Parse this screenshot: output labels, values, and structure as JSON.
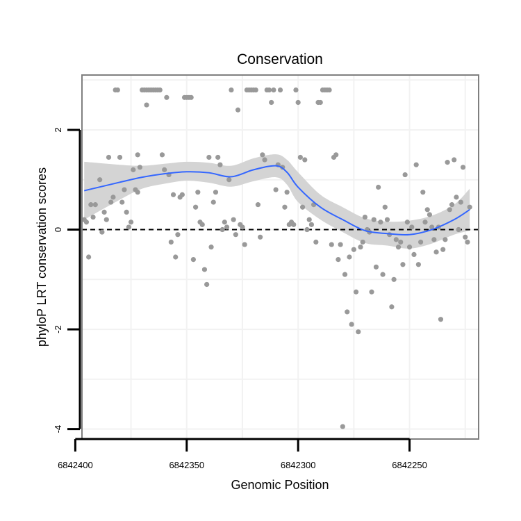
{
  "chart_data": {
    "type": "scatter",
    "title": "Conservation",
    "xlabel": "Genomic Position",
    "ylabel": "phyloP LRT conservation scores",
    "x_reversed": true,
    "xlim": [
      6842397,
      6842219
    ],
    "ylim": [
      -4.2,
      3.1
    ],
    "x_ticks": [
      6842400,
      6842350,
      6842300,
      6842250
    ],
    "x_tick_labels": [
      "6842400",
      "6842350",
      "6842300",
      "6842250"
    ],
    "y_ticks": [
      2,
      0,
      -2,
      -4
    ],
    "y_tick_labels": [
      "2",
      "0",
      "-2",
      "-4"
    ],
    "reference_line_y": 0,
    "grid": true,
    "colors": {
      "points": "#999999",
      "smooth_line": "#3366ff",
      "confidence_band": "#d4d4d4",
      "panel_border": "#7f7f7f",
      "grid": "#f2f2f2"
    },
    "points": [
      [
        6842396,
        0.2
      ],
      [
        6842395,
        0.15
      ],
      [
        6842394,
        -0.55
      ],
      [
        6842393,
        0.5
      ],
      [
        6842392,
        0.25
      ],
      [
        6842391,
        0.5
      ],
      [
        6842389,
        1.0
      ],
      [
        6842388,
        -0.05
      ],
      [
        6842387,
        0.35
      ],
      [
        6842386,
        0.2
      ],
      [
        6842385,
        1.45
      ],
      [
        6842384,
        0.55
      ],
      [
        6842383,
        0.65
      ],
      [
        6842382,
        2.8
      ],
      [
        6842381,
        2.8
      ],
      [
        6842380,
        1.45
      ],
      [
        6842379,
        0.55
      ],
      [
        6842378,
        0.8
      ],
      [
        6842377,
        0.35
      ],
      [
        6842376,
        0.05
      ],
      [
        6842375,
        0.15
      ],
      [
        6842374,
        1.2
      ],
      [
        6842373,
        0.8
      ],
      [
        6842372,
        0.75
      ],
      [
        6842372,
        1.5
      ],
      [
        6842371,
        1.25
      ],
      [
        6842370,
        2.8
      ],
      [
        6842369,
        2.8
      ],
      [
        6842368,
        2.8
      ],
      [
        6842368,
        2.5
      ],
      [
        6842367,
        2.8
      ],
      [
        6842366,
        2.8
      ],
      [
        6842365,
        2.8
      ],
      [
        6842364,
        2.8
      ],
      [
        6842363,
        2.8
      ],
      [
        6842362,
        2.8
      ],
      [
        6842361,
        1.5
      ],
      [
        6842360,
        1.2
      ],
      [
        6842359,
        2.65
      ],
      [
        6842358,
        1.1
      ],
      [
        6842357,
        -0.25
      ],
      [
        6842356,
        0.7
      ],
      [
        6842355,
        -0.55
      ],
      [
        6842354,
        -0.1
      ],
      [
        6842353,
        0.65
      ],
      [
        6842352,
        0.7
      ],
      [
        6842351,
        2.65
      ],
      [
        6842350,
        2.65
      ],
      [
        6842349,
        2.65
      ],
      [
        6842348,
        2.65
      ],
      [
        6842347,
        -0.6
      ],
      [
        6842346,
        0.45
      ],
      [
        6842345,
        0.75
      ],
      [
        6842344,
        0.15
      ],
      [
        6842343,
        0.1
      ],
      [
        6842342,
        -0.8
      ],
      [
        6842341,
        -1.1
      ],
      [
        6842340,
        1.45
      ],
      [
        6842339,
        -0.35
      ],
      [
        6842338,
        0.55
      ],
      [
        6842337,
        0.75
      ],
      [
        6842336,
        1.45
      ],
      [
        6842335,
        1.3
      ],
      [
        6842334,
        0.0
      ],
      [
        6842333,
        0.15
      ],
      [
        6842332,
        0.05
      ],
      [
        6842331,
        1.0
      ],
      [
        6842330,
        2.8
      ],
      [
        6842329,
        0.2
      ],
      [
        6842328,
        -0.1
      ],
      [
        6842327,
        2.4
      ],
      [
        6842326,
        0.1
      ],
      [
        6842325,
        0.05
      ],
      [
        6842324,
        -0.3
      ],
      [
        6842323,
        2.8
      ],
      [
        6842322,
        2.8
      ],
      [
        6842321,
        2.8
      ],
      [
        6842320,
        2.8
      ],
      [
        6842319,
        2.8
      ],
      [
        6842318,
        0.5
      ],
      [
        6842317,
        -0.15
      ],
      [
        6842316,
        1.5
      ],
      [
        6842315,
        1.4
      ],
      [
        6842314,
        2.8
      ],
      [
        6842313,
        2.8
      ],
      [
        6842312,
        2.55
      ],
      [
        6842311,
        2.8
      ],
      [
        6842310,
        0.8
      ],
      [
        6842309,
        1.3
      ],
      [
        6842308,
        2.8
      ],
      [
        6842307,
        1.25
      ],
      [
        6842306,
        0.45
      ],
      [
        6842305,
        0.75
      ],
      [
        6842304,
        0.1
      ],
      [
        6842303,
        0.15
      ],
      [
        6842302,
        0.1
      ],
      [
        6842301,
        2.8
      ],
      [
        6842300,
        2.55
      ],
      [
        6842299,
        1.45
      ],
      [
        6842298,
        0.45
      ],
      [
        6842297,
        1.4
      ],
      [
        6842296,
        0.0
      ],
      [
        6842295,
        0.2
      ],
      [
        6842294,
        0.1
      ],
      [
        6842293,
        0.5
      ],
      [
        6842292,
        -0.25
      ],
      [
        6842291,
        2.55
      ],
      [
        6842290,
        2.55
      ],
      [
        6842289,
        2.8
      ],
      [
        6842288,
        2.8
      ],
      [
        6842287,
        2.8
      ],
      [
        6842286,
        2.8
      ],
      [
        6842285,
        -0.3
      ],
      [
        6842284,
        1.45
      ],
      [
        6842283,
        1.5
      ],
      [
        6842282,
        -0.6
      ],
      [
        6842281,
        -0.3
      ],
      [
        6842280,
        -3.95
      ],
      [
        6842279,
        -0.9
      ],
      [
        6842278,
        -1.65
      ],
      [
        6842277,
        -0.55
      ],
      [
        6842276,
        -1.9
      ],
      [
        6842275,
        -0.4
      ],
      [
        6842274,
        -1.25
      ],
      [
        6842273,
        -2.05
      ],
      [
        6842272,
        -0.35
      ],
      [
        6842271,
        -0.25
      ],
      [
        6842270,
        0.25
      ],
      [
        6842269,
        0.0
      ],
      [
        6842268,
        -0.05
      ],
      [
        6842267,
        -1.25
      ],
      [
        6842266,
        0.2
      ],
      [
        6842265,
        -0.75
      ],
      [
        6842264,
        0.85
      ],
      [
        6842263,
        0.15
      ],
      [
        6842262,
        -0.9
      ],
      [
        6842261,
        0.45
      ],
      [
        6842260,
        0.2
      ],
      [
        6842259,
        -0.1
      ],
      [
        6842258,
        -1.55
      ],
      [
        6842257,
        -1.0
      ],
      [
        6842256,
        -0.2
      ],
      [
        6842255,
        -0.35
      ],
      [
        6842254,
        -0.25
      ],
      [
        6842253,
        -0.7
      ],
      [
        6842252,
        1.1
      ],
      [
        6842251,
        0.15
      ],
      [
        6842250,
        -0.35
      ],
      [
        6842249,
        0.05
      ],
      [
        6842248,
        -0.5
      ],
      [
        6842247,
        1.3
      ],
      [
        6842246,
        -0.7
      ],
      [
        6842245,
        -0.25
      ],
      [
        6842244,
        0.75
      ],
      [
        6842243,
        0.15
      ],
      [
        6842242,
        0.4
      ],
      [
        6842241,
        0.3
      ],
      [
        6842240,
        0.05
      ],
      [
        6842239,
        -0.2
      ],
      [
        6842238,
        -0.45
      ],
      [
        6842237,
        0.05
      ],
      [
        6842236,
        -1.8
      ],
      [
        6842235,
        -0.4
      ],
      [
        6842234,
        -0.2
      ],
      [
        6842233,
        1.35
      ],
      [
        6842232,
        0.4
      ],
      [
        6842231,
        0.5
      ],
      [
        6842230,
        1.4
      ],
      [
        6842229,
        0.65
      ],
      [
        6842228,
        0.0
      ],
      [
        6842227,
        0.55
      ],
      [
        6842226,
        1.25
      ],
      [
        6842225,
        -0.15
      ],
      [
        6842224,
        -0.25
      ],
      [
        6842223,
        0.45
      ]
    ],
    "smooth": {
      "x": [
        6842396,
        6842380,
        6842370,
        6842360,
        6842350,
        6842340,
        6842330,
        6842320,
        6842310,
        6842305,
        6842300,
        6842290,
        6842280,
        6842270,
        6842260,
        6842250,
        6842240,
        6842230,
        6842223
      ],
      "y": [
        0.78,
        0.95,
        1.05,
        1.12,
        1.16,
        1.14,
        1.06,
        1.2,
        1.28,
        1.15,
        0.85,
        0.45,
        0.2,
        -0.02,
        -0.08,
        -0.1,
        0.0,
        0.2,
        0.4
      ],
      "lower": [
        0.2,
        0.6,
        0.82,
        0.92,
        0.98,
        0.94,
        0.86,
        0.97,
        1.05,
        0.9,
        0.55,
        0.2,
        -0.05,
        -0.27,
        -0.32,
        -0.38,
        -0.28,
        -0.1,
        -0.02
      ],
      "upper": [
        1.36,
        1.3,
        1.28,
        1.32,
        1.36,
        1.34,
        1.28,
        1.43,
        1.51,
        1.4,
        1.15,
        0.7,
        0.45,
        0.23,
        0.16,
        0.18,
        0.28,
        0.5,
        0.82
      ]
    }
  }
}
